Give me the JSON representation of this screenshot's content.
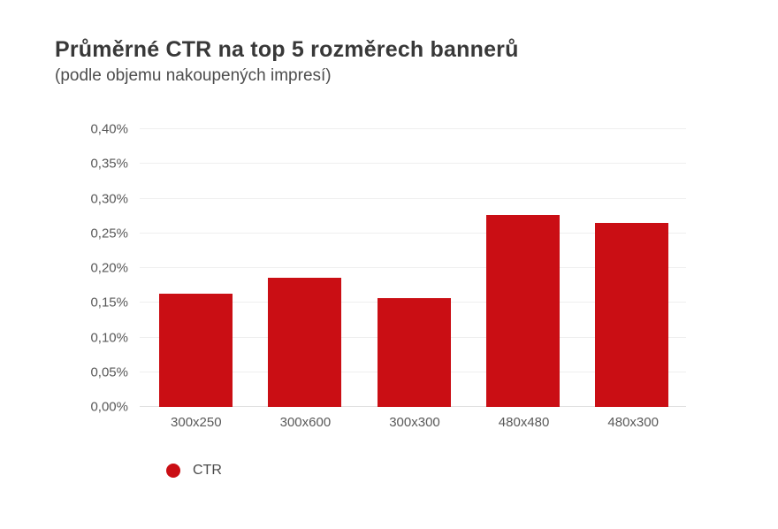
{
  "chart_data": {
    "type": "bar",
    "title": "Průměrné CTR na top 5 rozměrech bannerů",
    "subtitle": "(podle objemu nakoupených impresí)",
    "categories": [
      "300x250",
      "300x600",
      "300x300",
      "480x480",
      "480x300"
    ],
    "series": [
      {
        "name": "CTR",
        "color": "#ca0e14",
        "values": [
          0.163,
          0.186,
          0.157,
          0.277,
          0.265
        ]
      }
    ],
    "value_unit": "%",
    "ylim": [
      0,
      0.4
    ],
    "ytick_labels": [
      "0,00%",
      "0,05%",
      "0,10%",
      "0,15%",
      "0,20%",
      "0,25%",
      "0,30%",
      "0,35%",
      "0,40%"
    ],
    "grid": "horizontal",
    "legend": {
      "position": "bottom-left",
      "items": [
        {
          "label": "CTR",
          "color": "#ca0e14",
          "marker": "circle"
        }
      ]
    },
    "colors": {
      "bar": "#ca0e14",
      "title": "#383838",
      "subtitle": "#4d4d4d",
      "axis_labels": "#595959",
      "gridline": "#efefef",
      "baseline": "#e0e0e0",
      "background": "#ffffff"
    }
  }
}
